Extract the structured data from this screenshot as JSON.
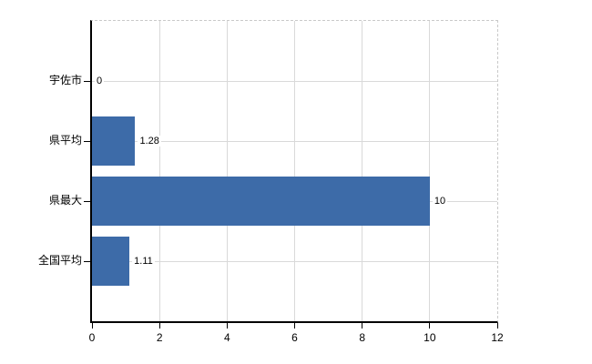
{
  "chart_data": {
    "type": "bar",
    "orientation": "horizontal",
    "title": "",
    "xlabel": "",
    "ylabel": "",
    "categories": [
      "宇佐市",
      "県平均",
      "県最大",
      "全国平均"
    ],
    "values": [
      0,
      1.28,
      10,
      1.11
    ],
    "value_labels": [
      "0",
      "1.28",
      "10",
      "1.11"
    ],
    "x_ticks": [
      0,
      2,
      4,
      6,
      8,
      10,
      12
    ],
    "x_tick_labels": [
      "0",
      "2",
      "4",
      "6",
      "8",
      "10",
      "12"
    ],
    "xlim": [
      0,
      12
    ],
    "grid": true,
    "legend": false,
    "bar_color": "#3d6ba8",
    "gridline_color": "#d9d9d9",
    "border_color": "#c9c9c9",
    "axis_color": "#000000",
    "background_color": "#ffffff"
  }
}
